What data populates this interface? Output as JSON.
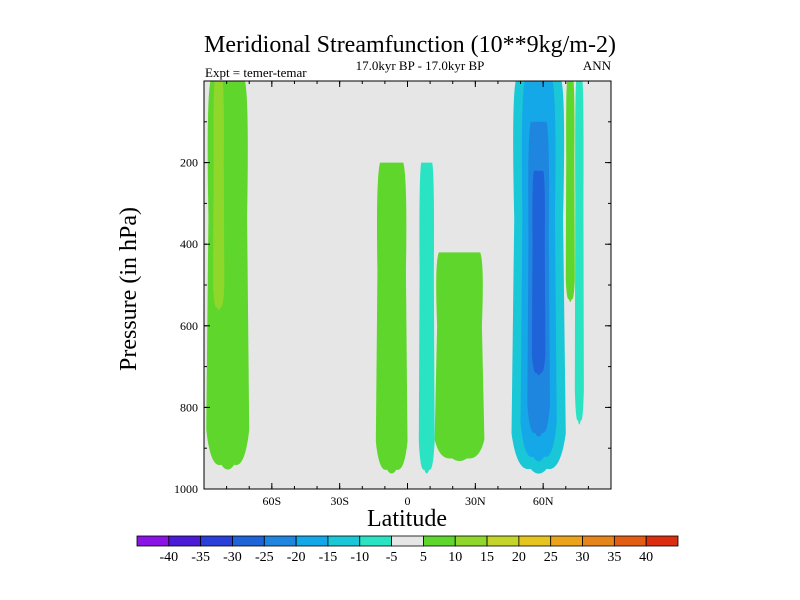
{
  "chart_data": {
    "type": "contour",
    "title": "Meridional Streamfunction (10**9kg/m-2)",
    "subtitle_left": "Expt = temer-temar",
    "subtitle_center": "17.0kyr BP - 17.0kyr BP",
    "subtitle_right": "ANN",
    "xlabel": "Latitude",
    "ylabel": "Pressure (in hPa)",
    "xlim": [
      -90,
      90
    ],
    "ylim": [
      1000,
      0
    ],
    "x_ticks": [
      {
        "value": -60,
        "label": "60S"
      },
      {
        "value": -30,
        "label": "30S"
      },
      {
        "value": 0,
        "label": "0"
      },
      {
        "value": 30,
        "label": "30N"
      },
      {
        "value": 60,
        "label": "60N"
      }
    ],
    "y_ticks": [
      {
        "value": 200,
        "label": "200"
      },
      {
        "value": 400,
        "label": "400"
      },
      {
        "value": 600,
        "label": "600"
      },
      {
        "value": 800,
        "label": "800"
      },
      {
        "value": 1000,
        "label": "1000"
      }
    ],
    "colorbar": {
      "levels": [
        -40,
        -35,
        -30,
        -25,
        -20,
        -15,
        -10,
        -5,
        5,
        10,
        15,
        20,
        25,
        30,
        35,
        40
      ],
      "labels": [
        "-40",
        "-35",
        "-30",
        "-25",
        "-20",
        "-15",
        "-10",
        "-5",
        "5",
        "10",
        "15",
        "20",
        "25",
        "30",
        "35",
        "40"
      ],
      "colors": [
        "#8a13e6",
        "#4b1cd8",
        "#2a3fd9",
        "#1e63d8",
        "#1f86e0",
        "#14a8e8",
        "#1ac7d6",
        "#2ae3c3",
        "#e6e6e6",
        "#5ed62c",
        "#8fd72b",
        "#c4d42a",
        "#e6c41e",
        "#eaa31a",
        "#e5841a",
        "#e25c13",
        "#db2e10"
      ]
    },
    "background_color": "#e6e6e6",
    "regions": [
      {
        "name": "sh-polar-positive",
        "value": 5,
        "lat_range": [
          -89,
          -70
        ],
        "p_range": [
          0,
          950
        ]
      },
      {
        "name": "sh-polar-core",
        "value": 10,
        "lat_range": [
          -86,
          -81
        ],
        "p_range": [
          0,
          560
        ]
      },
      {
        "name": "tropical-positive",
        "value": 5,
        "lat_range": [
          -14,
          0
        ],
        "p_range": [
          200,
          960
        ]
      },
      {
        "name": "tropical-negative",
        "value": -5,
        "lat_range": [
          5,
          12
        ],
        "p_range": [
          200,
          960
        ]
      },
      {
        "name": "nh-subtropical-positive",
        "value": 5,
        "lat_range": [
          12,
          34
        ],
        "p_range": [
          420,
          930
        ]
      },
      {
        "name": "nh-midlat-negative-outer",
        "value": -10,
        "lat_range": [
          46,
          70
        ],
        "p_range": [
          0,
          960
        ]
      },
      {
        "name": "nh-midlat-negative-mid",
        "value": -15,
        "lat_range": [
          50,
          66
        ],
        "p_range": [
          0,
          930
        ]
      },
      {
        "name": "nh-midlat-negative-inner",
        "value": -20,
        "lat_range": [
          53,
          63
        ],
        "p_range": [
          100,
          870
        ]
      },
      {
        "name": "nh-midlat-negative-core",
        "value": -25,
        "lat_range": [
          55,
          61
        ],
        "p_range": [
          220,
          720
        ]
      },
      {
        "name": "nh-polar-positive-a",
        "value": 5,
        "lat_range": [
          70,
          74
        ],
        "p_range": [
          0,
          540
        ]
      },
      {
        "name": "nh-polar-negative-b",
        "value": -5,
        "lat_range": [
          74,
          78
        ],
        "p_range": [
          0,
          840
        ]
      }
    ]
  }
}
